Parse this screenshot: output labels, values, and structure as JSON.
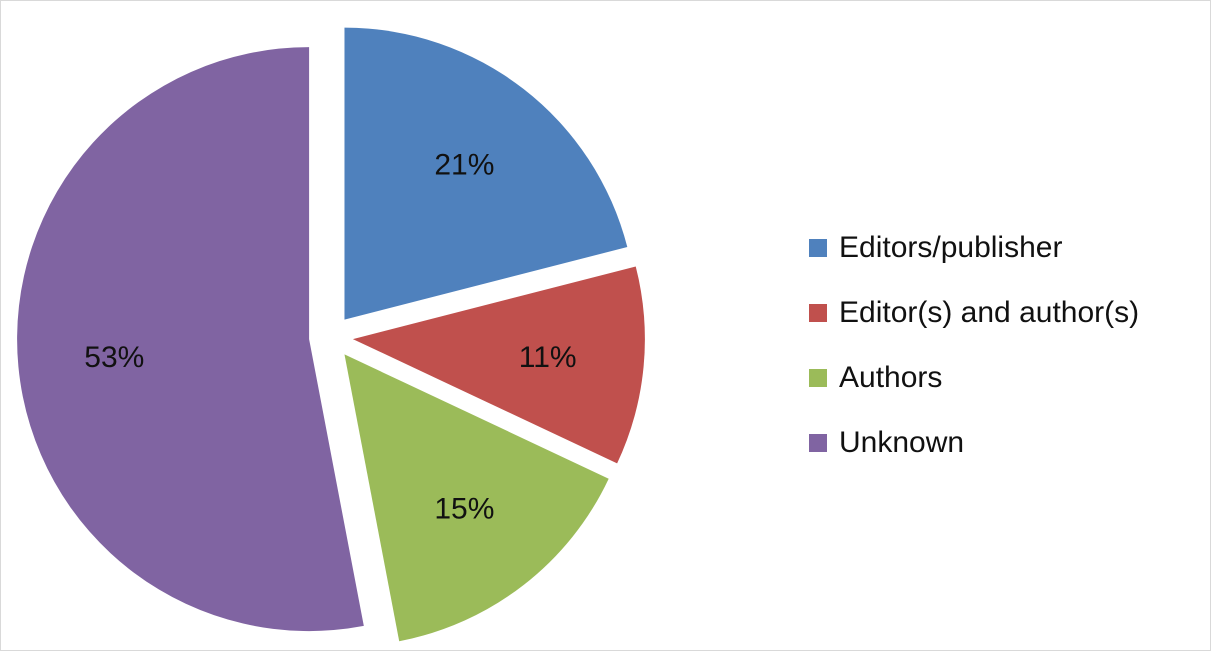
{
  "chart_data": {
    "type": "pie",
    "title": "",
    "categories": [
      "Editors/publisher",
      "Editor(s) and author(s)",
      "Authors",
      "Unknown"
    ],
    "values": [
      21,
      11,
      15,
      53
    ],
    "labels": [
      "21%",
      "11%",
      "15%",
      "53%"
    ],
    "colors": [
      "#4f81bd",
      "#c0504d",
      "#9bbb59",
      "#8064a2"
    ],
    "exploded": true,
    "legend_position": "right"
  }
}
